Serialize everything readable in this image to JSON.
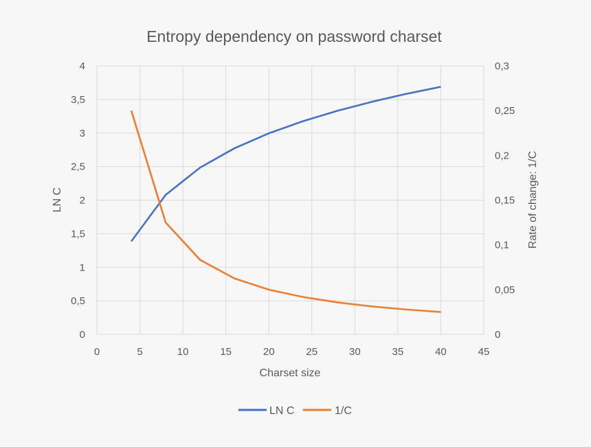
{
  "chart_data": {
    "type": "line",
    "title": "Entropy dependency on password charset",
    "xlabel": "Charset size",
    "ylabel": "LN C",
    "y2label": "Rate of change: 1/C",
    "xlim": [
      0,
      45
    ],
    "ylim": [
      0,
      4
    ],
    "y2lim": [
      0,
      0.3
    ],
    "xticks": [
      "0",
      "5",
      "10",
      "15",
      "20",
      "25",
      "30",
      "35",
      "40",
      "45"
    ],
    "yticks": [
      "0",
      "0,5",
      "1",
      "1,5",
      "2",
      "2,5",
      "3",
      "3,5",
      "4"
    ],
    "y2ticks": [
      "0",
      "0,05",
      "0,1",
      "0,15",
      "0,2",
      "0,25",
      "0,3"
    ],
    "grid": true,
    "legend_position": "bottom",
    "x": [
      4,
      8,
      12,
      16,
      20,
      24,
      28,
      32,
      36,
      40
    ],
    "series": [
      {
        "name": "LN C",
        "axis": "left",
        "color": "#4472C4",
        "values": [
          1.386,
          2.079,
          2.485,
          2.773,
          2.996,
          3.178,
          3.332,
          3.466,
          3.584,
          3.689
        ]
      },
      {
        "name": "1/C",
        "axis": "right",
        "color": "#ED7D31",
        "values": [
          0.25,
          0.125,
          0.0833,
          0.0625,
          0.05,
          0.0417,
          0.0357,
          0.03125,
          0.0278,
          0.025
        ]
      }
    ]
  }
}
